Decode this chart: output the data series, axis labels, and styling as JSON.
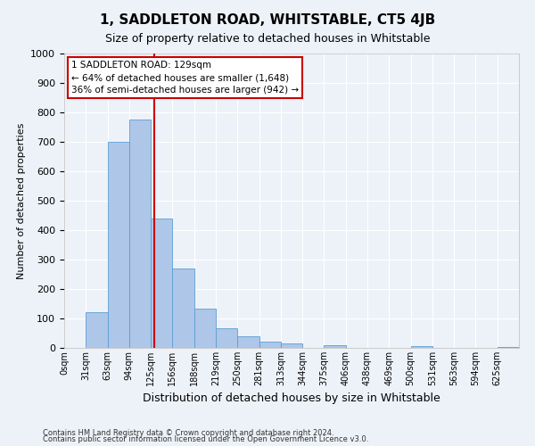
{
  "title": "1, SADDLETON ROAD, WHITSTABLE, CT5 4JB",
  "subtitle": "Size of property relative to detached houses in Whitstable",
  "xlabel": "Distribution of detached houses by size in Whitstable",
  "ylabel": "Number of detached properties",
  "bin_labels": [
    "0sqm",
    "31sqm",
    "63sqm",
    "94sqm",
    "125sqm",
    "156sqm",
    "188sqm",
    "219sqm",
    "250sqm",
    "281sqm",
    "313sqm",
    "344sqm",
    "375sqm",
    "406sqm",
    "438sqm",
    "469sqm",
    "500sqm",
    "531sqm",
    "563sqm",
    "594sqm",
    "625sqm"
  ],
  "bar_values": [
    0,
    122,
    700,
    775,
    440,
    270,
    133,
    67,
    40,
    22,
    15,
    0,
    10,
    0,
    0,
    0,
    5,
    0,
    0,
    0,
    3
  ],
  "bar_color": "#aec6e8",
  "bar_edge_color": "#5a9fd4",
  "property_line_x": 129,
  "bin_width": 31,
  "ylim": [
    0,
    1000
  ],
  "yticks": [
    0,
    100,
    200,
    300,
    400,
    500,
    600,
    700,
    800,
    900,
    1000
  ],
  "annotation_title": "1 SADDLETON ROAD: 129sqm",
  "annotation_line1": "← 64% of detached houses are smaller (1,648)",
  "annotation_line2": "36% of semi-detached houses are larger (942) →",
  "annotation_box_color": "#ffffff",
  "annotation_box_edge": "#cc0000",
  "vline_color": "#cc0000",
  "footnote1": "Contains HM Land Registry data © Crown copyright and database right 2024.",
  "footnote2": "Contains public sector information licensed under the Open Government Licence v3.0.",
  "background_color": "#edf2f9",
  "grid_color": "#ffffff",
  "title_fontsize": 11,
  "subtitle_fontsize": 9,
  "n_bins": 21
}
